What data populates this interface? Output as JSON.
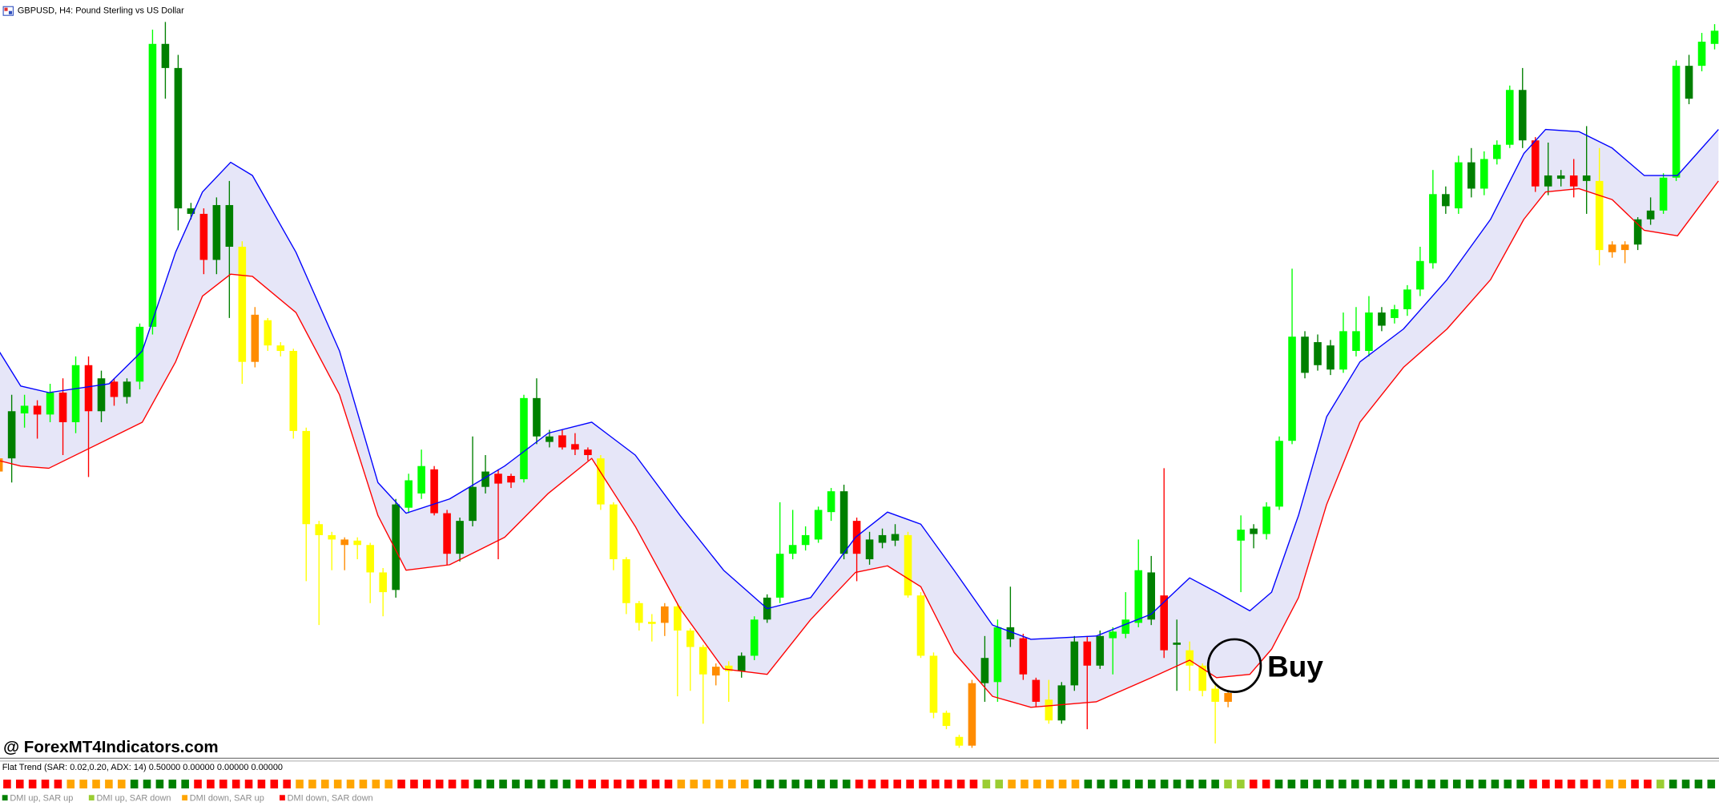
{
  "window_title": "GBPUSD, H4:  Pound Sterling vs US Dollar",
  "watermark": "@ ForexMT4Indicators.com",
  "chart_data": {
    "type": "candlestick",
    "annotation": "Buy",
    "xlim": [
      0,
      134
    ],
    "ylim": [
      0,
      682
    ],
    "candle_colors": [
      "#00ff00",
      "#008000",
      "#ff0000",
      "#ffff00",
      "#ff8c00"
    ],
    "candles": [
      [
        272,
        275,
        255,
        260,
        4
      ],
      [
        272,
        330,
        250,
        315,
        1
      ],
      [
        313,
        330,
        300,
        320,
        0
      ],
      [
        320,
        325,
        290,
        312,
        2
      ],
      [
        312,
        340,
        305,
        332,
        0
      ],
      [
        332,
        345,
        275,
        305,
        2
      ],
      [
        305,
        365,
        295,
        357,
        0
      ],
      [
        357,
        365,
        255,
        315,
        2
      ],
      [
        315,
        352,
        305,
        345,
        1
      ],
      [
        342,
        345,
        320,
        328,
        2
      ],
      [
        328,
        345,
        322,
        342,
        1
      ],
      [
        342,
        395,
        335,
        392,
        0
      ],
      [
        392,
        663,
        385,
        650,
        0
      ],
      [
        628,
        670,
        600,
        650,
        1
      ],
      [
        628,
        640,
        480,
        500,
        1
      ],
      [
        500,
        505,
        490,
        495,
        1
      ],
      [
        495,
        500,
        440,
        453,
        2
      ],
      [
        453,
        510,
        440,
        503,
        1
      ],
      [
        503,
        525,
        400,
        465,
        1
      ],
      [
        465,
        470,
        340,
        360,
        3
      ],
      [
        403,
        410,
        355,
        360,
        4
      ],
      [
        398,
        400,
        370,
        375,
        3
      ],
      [
        375,
        378,
        365,
        370,
        3
      ],
      [
        370,
        372,
        290,
        297,
        3
      ],
      [
        297,
        300,
        160,
        212,
        3
      ],
      [
        212,
        215,
        120,
        202,
        3
      ],
      [
        202,
        205,
        170,
        198,
        3
      ],
      [
        198,
        200,
        170,
        193,
        4
      ],
      [
        197,
        200,
        180,
        193,
        3
      ],
      [
        193,
        195,
        140,
        168,
        3
      ],
      [
        168,
        172,
        128,
        150,
        3
      ],
      [
        152,
        235,
        145,
        230,
        1
      ],
      [
        227,
        258,
        222,
        252,
        0
      ],
      [
        240,
        280,
        235,
        265,
        0
      ],
      [
        262,
        265,
        220,
        222,
        2
      ],
      [
        222,
        225,
        175,
        185,
        2
      ],
      [
        185,
        218,
        178,
        215,
        1
      ],
      [
        215,
        292,
        210,
        246,
        1
      ],
      [
        246,
        275,
        240,
        260,
        1
      ],
      [
        258,
        262,
        180,
        249,
        2
      ],
      [
        256,
        258,
        245,
        250,
        2
      ],
      [
        253,
        330,
        250,
        327,
        0
      ],
      [
        327,
        345,
        285,
        292,
        1
      ],
      [
        292,
        298,
        282,
        287,
        1
      ],
      [
        293,
        298,
        280,
        282,
        2
      ],
      [
        285,
        295,
        275,
        280,
        2
      ],
      [
        280,
        282,
        270,
        275,
        2
      ],
      [
        272,
        275,
        225,
        230,
        3
      ],
      [
        230,
        232,
        170,
        180,
        3
      ],
      [
        180,
        182,
        130,
        140,
        3
      ],
      [
        140,
        142,
        115,
        122,
        3
      ],
      [
        123,
        130,
        105,
        121,
        3
      ],
      [
        137,
        140,
        110,
        122,
        4
      ],
      [
        137,
        140,
        55,
        115,
        3
      ],
      [
        115,
        117,
        60,
        100,
        3
      ],
      [
        100,
        102,
        30,
        75,
        3
      ],
      [
        82,
        85,
        65,
        74,
        4
      ],
      [
        83,
        87,
        50,
        78,
        3
      ],
      [
        78,
        95,
        72,
        92,
        1
      ],
      [
        92,
        128,
        88,
        125,
        0
      ],
      [
        125,
        148,
        122,
        145,
        1
      ],
      [
        145,
        232,
        140,
        185,
        0
      ],
      [
        185,
        225,
        180,
        193,
        0
      ],
      [
        193,
        210,
        188,
        202,
        0
      ],
      [
        198,
        228,
        195,
        225,
        0
      ],
      [
        223,
        245,
        215,
        242,
        0
      ],
      [
        242,
        248,
        180,
        185,
        1
      ],
      [
        215,
        218,
        160,
        185,
        2
      ],
      [
        180,
        205,
        175,
        198,
        1
      ],
      [
        195,
        208,
        190,
        202,
        1
      ],
      [
        197,
        212,
        192,
        203,
        1
      ],
      [
        202,
        205,
        145,
        147,
        3
      ],
      [
        147,
        150,
        90,
        92,
        3
      ],
      [
        92,
        95,
        35,
        40,
        3
      ],
      [
        40,
        42,
        25,
        28,
        3
      ],
      [
        18,
        20,
        8,
        10,
        3
      ],
      [
        67,
        70,
        8,
        10,
        4
      ],
      [
        67,
        110,
        50,
        90,
        1
      ],
      [
        68,
        125,
        50,
        118,
        0
      ],
      [
        118,
        155,
        100,
        107,
        1
      ],
      [
        108,
        112,
        70,
        75,
        2
      ],
      [
        70,
        72,
        45,
        50,
        2
      ],
      [
        52,
        70,
        30,
        33,
        3
      ],
      [
        33,
        68,
        30,
        65,
        1
      ],
      [
        65,
        110,
        60,
        105,
        1
      ],
      [
        105,
        110,
        25,
        83,
        2
      ],
      [
        83,
        115,
        80,
        110,
        1
      ],
      [
        108,
        118,
        75,
        114,
        0
      ],
      [
        112,
        150,
        108,
        125,
        0
      ],
      [
        122,
        198,
        118,
        170,
        0
      ],
      [
        125,
        183,
        120,
        168,
        1
      ],
      [
        147,
        263,
        90,
        97,
        2
      ],
      [
        102,
        125,
        60,
        104,
        1
      ],
      [
        97,
        105,
        60,
        83,
        3
      ],
      [
        83,
        85,
        55,
        60,
        3
      ],
      [
        62,
        65,
        12,
        50,
        3
      ],
      [
        58,
        60,
        45,
        50,
        4
      ],
      [
        197,
        220,
        150,
        207,
        0
      ],
      [
        203,
        212,
        190,
        208,
        1
      ],
      [
        203,
        232,
        198,
        228,
        0
      ],
      [
        228,
        292,
        225,
        288,
        0
      ],
      [
        288,
        445,
        285,
        383,
        0
      ],
      [
        383,
        388,
        345,
        350,
        1
      ],
      [
        357,
        385,
        352,
        378,
        1
      ],
      [
        375,
        380,
        348,
        353,
        1
      ],
      [
        353,
        405,
        350,
        388,
        0
      ],
      [
        370,
        410,
        365,
        388,
        0
      ],
      [
        370,
        420,
        365,
        405,
        0
      ],
      [
        405,
        410,
        388,
        393,
        1
      ],
      [
        400,
        412,
        395,
        408,
        0
      ],
      [
        408,
        430,
        402,
        426,
        0
      ],
      [
        426,
        465,
        420,
        452,
        0
      ],
      [
        450,
        535,
        445,
        513,
        0
      ],
      [
        502,
        520,
        495,
        513,
        1
      ],
      [
        500,
        548,
        495,
        542,
        0
      ],
      [
        542,
        555,
        510,
        518,
        1
      ],
      [
        518,
        552,
        512,
        545,
        0
      ],
      [
        545,
        562,
        540,
        558,
        0
      ],
      [
        558,
        612,
        555,
        608,
        0
      ],
      [
        608,
        628,
        555,
        562,
        1
      ],
      [
        562,
        565,
        515,
        520,
        2
      ],
      [
        520,
        560,
        512,
        530,
        1
      ],
      [
        527,
        535,
        520,
        530,
        1
      ],
      [
        530,
        545,
        510,
        520,
        2
      ],
      [
        525,
        575,
        495,
        530,
        1
      ],
      [
        525,
        555,
        448,
        462,
        3
      ],
      [
        467,
        470,
        455,
        460,
        4
      ],
      [
        467,
        470,
        450,
        462,
        4
      ],
      [
        467,
        492,
        462,
        490,
        1
      ],
      [
        490,
        510,
        485,
        498,
        1
      ],
      [
        498,
        532,
        495,
        528,
        0
      ],
      [
        528,
        635,
        525,
        630,
        0
      ],
      [
        600,
        640,
        595,
        630,
        1
      ],
      [
        630,
        660,
        625,
        652,
        0
      ],
      [
        650,
        668,
        645,
        662,
        0
      ]
    ],
    "band_x": [
      0,
      1.7,
      3.9,
      8.6,
      11.2,
      13.8,
      15.9,
      18.1,
      19.8,
      23.2,
      26.6,
      29.6,
      31.8,
      35.2,
      39.5,
      42.9,
      46.3,
      49.7,
      53.2,
      56.6,
      60,
      63.4,
      66.9,
      69.4,
      72,
      74.6,
      77.6,
      80.6,
      85.7,
      90,
      93,
      95.1,
      97.7,
      99.4,
      101.5,
      103.7,
      106.3,
      109.7,
      113.1,
      116.5,
      119.1,
      120.8,
      123.4,
      126,
      128.5,
      131.1,
      134.3
    ],
    "band_fill": "#e6e6f8",
    "upper_band": {
      "color": "#0000ff",
      "values": [
        370,
        338,
        332,
        340,
        370,
        460,
        515,
        542,
        530,
        460,
        370,
        250,
        222,
        235,
        265,
        295,
        305,
        275,
        220,
        170,
        135,
        145,
        200,
        223,
        212,
        170,
        120,
        107,
        110,
        130,
        163,
        150,
        133,
        150,
        220,
        310,
        360,
        390,
        435,
        490,
        550,
        572,
        570,
        555,
        530,
        530,
        572
      ]
    },
    "lower_band": {
      "color": "#ff0000",
      "values": [
        270,
        265,
        263,
        290,
        305,
        360,
        420,
        440,
        438,
        405,
        330,
        220,
        170,
        175,
        200,
        240,
        272,
        210,
        135,
        80,
        75,
        125,
        168,
        174,
        155,
        95,
        55,
        45,
        50,
        72,
        88,
        72,
        75,
        98,
        145,
        230,
        305,
        355,
        390,
        435,
        490,
        515,
        518,
        508,
        480,
        475,
        525
      ]
    }
  },
  "indicator": {
    "label": "Flat Trend (SAR: 0.02,0.20, ADX: 14) 0.50000 0.00000 0.00000 0.00000",
    "states": [
      3,
      3,
      3,
      3,
      3,
      2,
      2,
      2,
      2,
      2,
      0,
      0,
      0,
      0,
      0,
      3,
      3,
      3,
      3,
      3,
      3,
      3,
      3,
      2,
      2,
      2,
      2,
      2,
      2,
      2,
      2,
      3,
      3,
      3,
      3,
      3,
      3,
      0,
      0,
      0,
      0,
      0,
      0,
      0,
      0,
      3,
      3,
      3,
      3,
      3,
      3,
      3,
      3,
      2,
      2,
      2,
      2,
      2,
      2,
      0,
      0,
      0,
      0,
      0,
      0,
      0,
      0,
      3,
      3,
      3,
      3,
      3,
      3,
      3,
      3,
      3,
      3,
      1,
      1,
      2,
      2,
      2,
      2,
      2,
      2,
      0,
      0,
      0,
      0,
      0,
      0,
      0,
      0,
      0,
      0,
      0,
      1,
      1,
      3,
      3,
      0,
      0,
      0,
      0,
      0,
      0,
      0,
      0,
      0,
      0,
      0,
      0,
      0,
      0,
      0,
      0,
      0,
      0,
      0,
      0,
      3,
      3,
      3,
      3,
      3,
      3,
      2,
      2,
      3,
      3,
      1,
      0,
      0,
      0,
      0
    ],
    "legend": [
      {
        "name": "DMI up, SAR up",
        "color": "#008000"
      },
      {
        "name": "DMI up, SAR down",
        "color": "#9acd32"
      },
      {
        "name": "DMI down, SAR up",
        "color": "#ffa500"
      },
      {
        "name": "DMI down, SAR down",
        "color": "#ff0000"
      }
    ]
  }
}
